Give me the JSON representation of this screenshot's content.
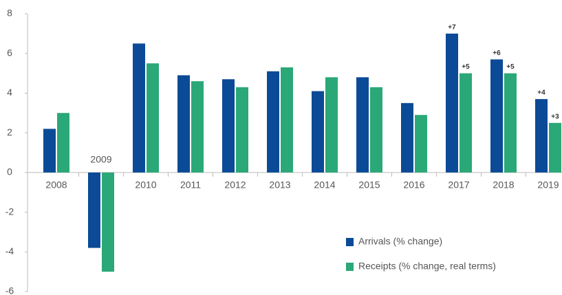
{
  "chart_data": {
    "type": "bar",
    "categories": [
      "2008",
      "2009",
      "2010",
      "2011",
      "2012",
      "2013",
      "2014",
      "2015",
      "2016",
      "2017",
      "2018",
      "2019"
    ],
    "series": [
      {
        "name": "Arrivals (% change)",
        "color": "#0b4a96",
        "values": [
          2.2,
          -3.8,
          6.5,
          4.9,
          4.7,
          5.1,
          4.1,
          4.8,
          3.5,
          7.0,
          5.7,
          3.7
        ],
        "value_labels": [
          null,
          null,
          null,
          null,
          null,
          null,
          null,
          null,
          null,
          "+7",
          "+6",
          "+4"
        ]
      },
      {
        "name": "Receipts (% change, real terms)",
        "color": "#2ba877",
        "values": [
          3.0,
          -5.0,
          5.5,
          4.6,
          4.3,
          5.3,
          4.8,
          4.3,
          2.9,
          5.0,
          5.0,
          2.5
        ],
        "value_labels": [
          null,
          null,
          null,
          null,
          null,
          null,
          null,
          null,
          null,
          "+5",
          "+5",
          "+3"
        ]
      }
    ],
    "ylim": [
      -6,
      8
    ],
    "yticks": [
      -6,
      -4,
      -2,
      0,
      2,
      4,
      6,
      8
    ],
    "legend": "lower right"
  }
}
